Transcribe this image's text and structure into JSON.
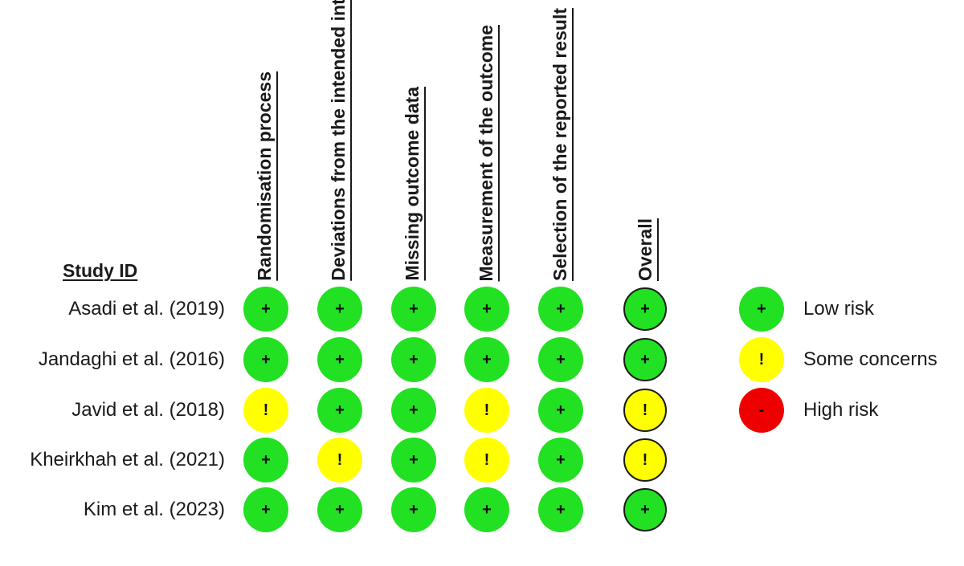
{
  "domain_headers": [
    "Randomisation process",
    "Deviations from the intended interventions",
    "Missing outcome data",
    "Measurement of the outcome",
    "Selection of the reported result",
    "Overall"
  ],
  "study_id_label": "Study ID",
  "studies": [
    {
      "name": "Asadi et al. (2019)",
      "judgements": [
        "low",
        "low",
        "low",
        "low",
        "low",
        "low"
      ]
    },
    {
      "name": "Jandaghi et al. (2016)",
      "judgements": [
        "low",
        "low",
        "low",
        "low",
        "low",
        "low"
      ]
    },
    {
      "name": "Javid et al. (2018)",
      "judgements": [
        "some",
        "low",
        "low",
        "some",
        "low",
        "some"
      ]
    },
    {
      "name": "Kheirkhah et al. (2021)",
      "judgements": [
        "low",
        "some",
        "low",
        "some",
        "low",
        "some"
      ]
    },
    {
      "name": "Kim et al. (2023)",
      "judgements": [
        "low",
        "low",
        "low",
        "low",
        "low",
        "low"
      ]
    }
  ],
  "legend": [
    {
      "level": "low",
      "label": "Low risk"
    },
    {
      "level": "some",
      "label": "Some concerns"
    },
    {
      "level": "high",
      "label": "High risk"
    }
  ],
  "levels": {
    "low": {
      "symbol": "+",
      "color": "#22e022"
    },
    "some": {
      "symbol": "!",
      "color": "#ffff00"
    },
    "high": {
      "symbol": "-",
      "color": "#ee0000"
    }
  }
}
